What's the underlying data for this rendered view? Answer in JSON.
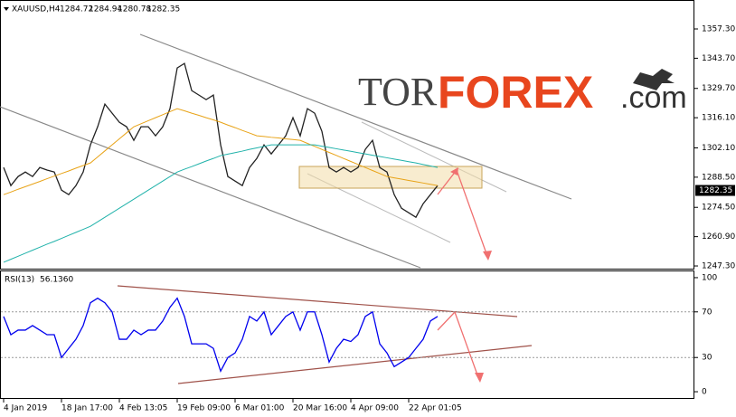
{
  "chart_data": [
    {
      "type": "line",
      "title": "XAUUSD,H4",
      "ohlc": [
        1284.72,
        1284.94,
        1280.78,
        1282.35
      ],
      "categories": [
        "4 Jan 2019",
        null,
        null,
        null,
        null,
        null,
        null,
        null,
        "18 Jan 17:00",
        null,
        null,
        null,
        null,
        null,
        null,
        null,
        "4 Feb 13:05",
        null,
        null,
        null,
        null,
        null,
        null,
        null,
        "19 Feb 09:00",
        null,
        null,
        null,
        null,
        null,
        null,
        null,
        "6 Mar 01:00",
        null,
        null,
        null,
        null,
        null,
        null,
        null,
        "20 Mar 16:00",
        null,
        null,
        null,
        null,
        null,
        null,
        null,
        "4 Apr 09:00",
        null,
        null,
        null,
        null,
        null,
        null,
        null,
        "22 Apr 01:05",
        null,
        null,
        null,
        null
      ],
      "series": [
        {
          "color": "#222222",
          "values": [
            1293.0,
            1284.6,
            1288.8,
            1290.9,
            1288.8,
            1293.0,
            1291.8,
            1290.9,
            1282.5,
            1280.4,
            1284.6,
            1290.9,
            1303.5,
            1311.9,
            1322.4,
            1318.2,
            1314.0,
            1311.9,
            1305.6,
            1311.9,
            1311.9,
            1307.7,
            1311.9,
            1320.3,
            1339.2,
            1341.3,
            1328.7,
            1326.6,
            1324.5,
            1326.6,
            1303.5,
            1288.8,
            1286.7,
            1284.6,
            1293.0,
            1297.2,
            1303.5,
            1299.3,
            1303.5,
            1307.7,
            1316.1,
            1307.7,
            1320.3,
            1318.2,
            1309.8,
            1293.0,
            1290.9,
            1293.0,
            1290.9,
            1293.0,
            1301.4,
            1305.6,
            1293.0,
            1290.9,
            1280.4,
            1274.1,
            1272.0,
            1269.9,
            1276.2,
            1280.4,
            1284.6
          ]
        },
        {
          "color": "#e8a317",
          "values": [
            1280.4,
            1281.6,
            1282.9,
            1284.1,
            1285.3,
            1286.5,
            1287.8,
            1289.0,
            1290.2,
            1291.4,
            1292.7,
            1293.9,
            1295.1,
            1297.9,
            1300.7,
            1303.5,
            1306.3,
            1309.1,
            1311.9,
            1313.3,
            1314.7,
            1316.1,
            1317.5,
            1318.9,
            1320.3,
            1319.3,
            1318.2,
            1317.2,
            1316.1,
            1315.1,
            1314.0,
            1312.7,
            1311.5,
            1310.2,
            1309.0,
            1307.7,
            1307.4,
            1307.0,
            1306.7,
            1306.3,
            1306.0,
            1305.6,
            1304.2,
            1302.8,
            1301.4,
            1300.0,
            1298.6,
            1297.2,
            1295.8,
            1294.4,
            1293.0,
            1291.6,
            1290.2,
            1288.8,
            1288.2,
            1287.6,
            1287.0,
            1286.4,
            1285.8,
            1285.2,
            1284.6
          ]
        },
        {
          "color": "#20b2aa",
          "values": [
            1249.0,
            1250.4,
            1251.8,
            1253.2,
            1254.6,
            1256.0,
            1257.4,
            1258.7,
            1260.1,
            1261.5,
            1262.9,
            1264.3,
            1265.7,
            1267.8,
            1269.9,
            1272.0,
            1274.1,
            1276.2,
            1278.3,
            1280.4,
            1282.5,
            1284.6,
            1286.7,
            1288.8,
            1290.9,
            1292.2,
            1293.4,
            1294.7,
            1296.0,
            1297.2,
            1298.5,
            1299.2,
            1299.9,
            1300.6,
            1301.4,
            1302.1,
            1302.8,
            1303.5,
            1303.5,
            1303.5,
            1303.5,
            1303.5,
            1303.5,
            1303.5,
            1302.9,
            1302.3,
            1301.7,
            1301.1,
            1300.5,
            1299.9,
            1299.3,
            1298.7,
            1298.1,
            1297.5,
            1296.9,
            1296.3,
            1295.7,
            1295.1,
            1294.4,
            1293.7,
            1293.0
          ]
        }
      ],
      "current_price": 1282.35,
      "ylim": [
        1246.05,
        1370.73
      ],
      "yticks": [
        {
          "value": 1357.3,
          "label": "1357.30"
        },
        {
          "value": 1343.7,
          "label": "1343.70"
        },
        {
          "value": 1329.7,
          "label": "1329.70"
        },
        {
          "value": 1316.1,
          "label": "1316.10"
        },
        {
          "value": 1302.1,
          "label": "1302.10"
        },
        {
          "value": 1288.5,
          "label": "1288.50"
        },
        {
          "value": 1274.5,
          "label": "1274.50"
        },
        {
          "value": 1260.9,
          "label": "1260.90"
        },
        {
          "value": 1247.3,
          "label": "1247.30"
        }
      ],
      "watermark": [
        "TOR",
        "FOREX",
        ".com"
      ]
    },
    {
      "type": "line",
      "title": "RSI(13)",
      "current_value": {
        "value": 56.136,
        "label": "56.1360"
      },
      "series": [
        {
          "color": "#0000ee",
          "values": [
            66,
            50,
            54,
            54,
            58,
            54,
            50,
            50,
            30,
            38,
            46,
            58,
            78,
            82,
            78,
            70,
            46,
            46,
            54,
            50,
            54,
            54,
            62,
            74,
            82,
            66,
            42,
            42,
            42,
            38,
            18,
            30,
            34,
            46,
            66,
            62,
            70,
            50,
            58,
            66,
            70,
            54,
            70,
            70,
            50,
            26,
            38,
            46,
            44,
            50,
            66,
            70,
            42,
            34,
            22,
            26,
            30,
            38,
            46,
            62,
            66
          ]
        }
      ],
      "ylim": [
        -6.3,
        107.1
      ],
      "yticks": [
        100,
        70,
        30,
        0
      ],
      "levels": [
        70,
        30
      ]
    }
  ]
}
